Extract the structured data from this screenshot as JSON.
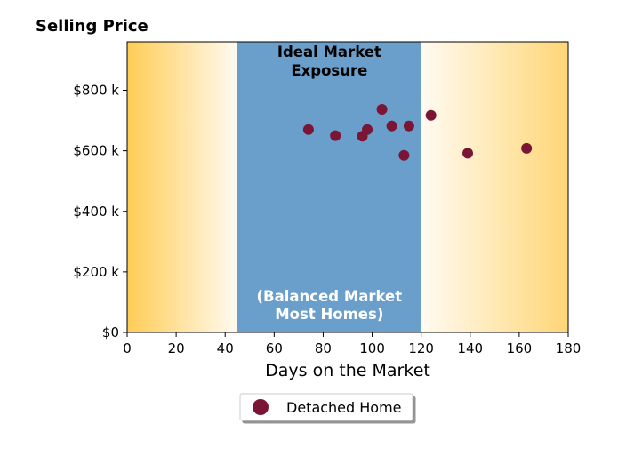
{
  "chart_data": {
    "type": "scatter",
    "title": "Selling Price",
    "xlabel": "Days on the Market",
    "ylabel": "",
    "xlim": [
      0,
      180
    ],
    "ylim": [
      0,
      960000
    ],
    "x_ticks": [
      0,
      20,
      40,
      60,
      80,
      100,
      120,
      140,
      160,
      180
    ],
    "x_tick_labels": [
      "0",
      "20",
      "40",
      "60",
      "80",
      "100",
      "120",
      "140",
      "160",
      "180"
    ],
    "y_ticks": [
      0,
      200000,
      400000,
      600000,
      800000
    ],
    "y_tick_labels": [
      "$0",
      "$200 k",
      "$400 k",
      "$600 k",
      "$800 k"
    ],
    "grid": false,
    "legend_position": "bottom-center",
    "bands": [
      {
        "from": 0,
        "to": 45,
        "color": "#ffcc55",
        "fade": "to-right"
      },
      {
        "from": 45,
        "to": 120,
        "color": "#6a9ecb",
        "label_top": [
          "Ideal Market",
          "Exposure"
        ],
        "label_bottom": [
          "(Balanced Market",
          "Most Homes)"
        ]
      },
      {
        "from": 120,
        "to": 180,
        "color": "#ffcc55",
        "fade": "to-left"
      }
    ],
    "series": [
      {
        "name": "Detached Home",
        "color": "#7b1535",
        "points": [
          {
            "x": 74,
            "y": 670000
          },
          {
            "x": 85,
            "y": 650000
          },
          {
            "x": 96,
            "y": 648000
          },
          {
            "x": 98,
            "y": 670000
          },
          {
            "x": 104,
            "y": 737000
          },
          {
            "x": 108,
            "y": 682000
          },
          {
            "x": 113,
            "y": 585000
          },
          {
            "x": 115,
            "y": 682000
          },
          {
            "x": 124,
            "y": 717000
          },
          {
            "x": 139,
            "y": 592000
          },
          {
            "x": 163,
            "y": 608000
          }
        ]
      }
    ]
  }
}
